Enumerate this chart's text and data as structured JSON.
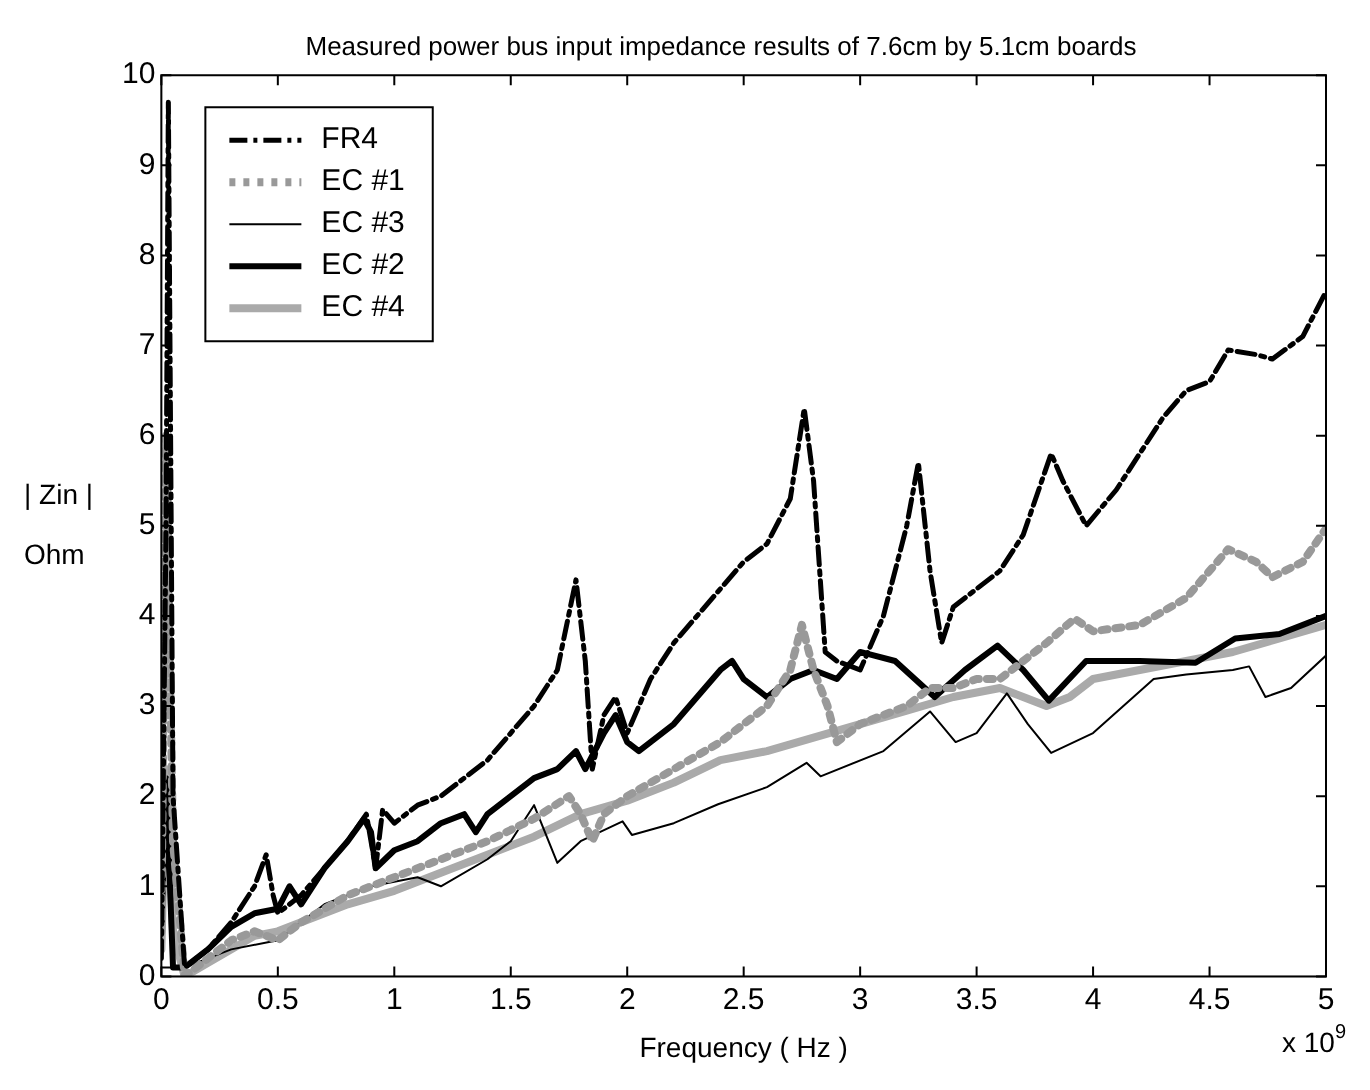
{
  "chart_data": {
    "type": "line",
    "title": "Measured power bus input impedance results of 7.6cm by 5.1cm boards",
    "xlabel": "Frequency ( Hz )",
    "ylabel": "| Zin |\nOhm",
    "annotations": [
      "x 10$^{9}$"
    ],
    "xlim": [
      0,
      5
    ],
    "xticks": [
      0,
      0.5,
      1,
      1.5,
      2,
      2.5,
      3,
      3.5,
      4,
      4.5,
      5
    ],
    "ylim": [
      0,
      10
    ],
    "yticks": [
      0,
      1,
      2,
      3,
      4,
      5,
      6,
      7,
      8,
      9,
      10
    ],
    "grid": false,
    "legend": "top left",
    "marker": "none",
    "series": [
      {
        "name": "FR4",
        "color": "#000000",
        "line_style": "dashed",
        "x": [
          0,
          0.02,
          0.03,
          0.05,
          0.1,
          0.2,
          0.3,
          0.4,
          0.45,
          0.48,
          0.5,
          0.6,
          0.7,
          0.8,
          0.88,
          0.92,
          0.95,
          1.0,
          1.1,
          1.2,
          1.3,
          1.4,
          1.5,
          1.6,
          1.7,
          1.78,
          1.82,
          1.85,
          1.9,
          1.95,
          2.0,
          2.1,
          2.2,
          2.3,
          2.4,
          2.5,
          2.6,
          2.7,
          2.76,
          2.8,
          2.85,
          2.9,
          3.0,
          3.1,
          3.2,
          3.25,
          3.3,
          3.35,
          3.4,
          3.5,
          3.6,
          3.7,
          3.82,
          3.87,
          3.97,
          4.1,
          4.2,
          4.3,
          4.4,
          4.5,
          4.58,
          4.7,
          4.77,
          4.9,
          5.0
        ],
        "values": [
          0.2,
          5,
          9.7,
          2,
          0.1,
          0.3,
          0.6,
          1.0,
          1.35,
          0.9,
          0.7,
          0.9,
          1.2,
          1.5,
          1.8,
          1.2,
          1.85,
          1.7,
          1.9,
          2.0,
          2.2,
          2.4,
          2.7,
          3.0,
          3.4,
          4.4,
          3.5,
          2.3,
          2.9,
          3.1,
          2.7,
          3.3,
          3.7,
          4.0,
          4.3,
          4.6,
          4.8,
          5.3,
          6.3,
          5.5,
          3.6,
          3.5,
          3.4,
          4.0,
          5.0,
          5.7,
          4.5,
          3.7,
          4.1,
          4.3,
          4.5,
          4.9,
          5.8,
          5.5,
          5.0,
          5.4,
          5.8,
          6.2,
          6.5,
          6.6,
          6.95,
          6.9,
          6.85,
          7.1,
          7.6
        ]
      },
      {
        "name": "EC #1",
        "color": "#999999",
        "line_style": "dotted",
        "x": [
          0,
          0.02,
          0.05,
          0.1,
          0.2,
          0.3,
          0.4,
          0.5,
          0.6,
          0.8,
          0.9,
          1.0,
          1.2,
          1.4,
          1.6,
          1.75,
          1.8,
          1.85,
          1.9,
          2.0,
          2.2,
          2.4,
          2.6,
          2.7,
          2.75,
          2.8,
          2.86,
          2.9,
          3.0,
          3.2,
          3.3,
          3.4,
          3.5,
          3.6,
          3.7,
          3.8,
          3.92,
          4.0,
          4.2,
          4.4,
          4.58,
          4.7,
          4.77,
          4.9,
          5.0
        ],
        "values": [
          0.5,
          6.0,
          1.5,
          0,
          0.2,
          0.4,
          0.5,
          0.4,
          0.6,
          0.9,
          1.0,
          1.1,
          1.3,
          1.5,
          1.75,
          2.0,
          1.8,
          1.5,
          1.8,
          2.0,
          2.3,
          2.6,
          3.0,
          3.4,
          3.9,
          3.4,
          3.0,
          2.6,
          2.8,
          3.0,
          3.2,
          3.2,
          3.3,
          3.3,
          3.5,
          3.7,
          3.97,
          3.83,
          3.9,
          4.2,
          4.74,
          4.6,
          4.43,
          4.6,
          4.97
        ]
      },
      {
        "name": "EC #3",
        "color": "#000000",
        "line_style": "solid",
        "x": [
          0,
          0.1,
          0.2,
          0.3,
          0.5,
          0.7,
          0.9,
          1.1,
          1.2,
          1.4,
          1.5,
          1.6,
          1.7,
          1.8,
          1.98,
          2.02,
          2.2,
          2.39,
          2.6,
          2.77,
          2.83,
          3.1,
          3.3,
          3.41,
          3.5,
          3.63,
          3.72,
          3.82,
          4.0,
          4.26,
          4.4,
          4.6,
          4.67,
          4.74,
          4.85,
          5.0
        ],
        "values": [
          0.1,
          0.1,
          0.2,
          0.3,
          0.4,
          0.8,
          1.0,
          1.1,
          1.0,
          1.3,
          1.5,
          1.9,
          1.26,
          1.5,
          1.72,
          1.57,
          1.7,
          1.91,
          2.1,
          2.37,
          2.22,
          2.5,
          2.94,
          2.6,
          2.7,
          3.14,
          2.8,
          2.48,
          2.7,
          3.3,
          3.35,
          3.4,
          3.44,
          3.1,
          3.2,
          3.56
        ]
      },
      {
        "name": "EC #2",
        "color": "#000000",
        "line_style": "solid",
        "x": [
          0,
          0.02,
          0.05,
          0.1,
          0.2,
          0.3,
          0.4,
          0.5,
          0.55,
          0.6,
          0.7,
          0.8,
          0.87,
          0.9,
          0.92,
          1.0,
          1.1,
          1.2,
          1.3,
          1.35,
          1.4,
          1.5,
          1.6,
          1.7,
          1.78,
          1.82,
          1.9,
          1.95,
          2.0,
          2.05,
          2.2,
          2.3,
          2.4,
          2.45,
          2.5,
          2.6,
          2.7,
          2.8,
          2.9,
          3.0,
          3.15,
          3.32,
          3.45,
          3.59,
          3.7,
          3.81,
          3.97,
          4.2,
          4.44,
          4.61,
          4.8,
          5.0
        ],
        "values": [
          0.5,
          2.2,
          0.1,
          0.1,
          0.3,
          0.55,
          0.7,
          0.75,
          1.0,
          0.8,
          1.2,
          1.5,
          1.75,
          1.6,
          1.2,
          1.4,
          1.5,
          1.7,
          1.8,
          1.6,
          1.8,
          2.0,
          2.2,
          2.3,
          2.5,
          2.3,
          2.7,
          2.9,
          2.6,
          2.5,
          2.8,
          3.1,
          3.4,
          3.5,
          3.3,
          3.1,
          3.3,
          3.4,
          3.3,
          3.6,
          3.5,
          3.1,
          3.4,
          3.67,
          3.4,
          3.06,
          3.5,
          3.5,
          3.48,
          3.75,
          3.8,
          4.0
        ]
      },
      {
        "name": "EC #4",
        "color": "#aaaaaa",
        "line_style": "solid",
        "x": [
          0,
          0.02,
          0.05,
          0.1,
          0.2,
          0.3,
          0.4,
          0.5,
          0.6,
          0.8,
          1.0,
          1.2,
          1.4,
          1.6,
          1.8,
          2.0,
          2.2,
          2.4,
          2.6,
          2.8,
          3.0,
          3.2,
          3.4,
          3.6,
          3.7,
          3.8,
          3.9,
          4.0,
          4.2,
          4.4,
          4.6,
          4.8,
          5.0
        ],
        "values": [
          0.3,
          2.3,
          0.5,
          0,
          0.15,
          0.3,
          0.45,
          0.5,
          0.6,
          0.8,
          0.95,
          1.15,
          1.35,
          1.55,
          1.8,
          1.95,
          2.15,
          2.4,
          2.5,
          2.65,
          2.8,
          2.95,
          3.1,
          3.2,
          3.1,
          3.0,
          3.1,
          3.3,
          3.4,
          3.5,
          3.6,
          3.75,
          3.9
        ]
      }
    ]
  }
}
